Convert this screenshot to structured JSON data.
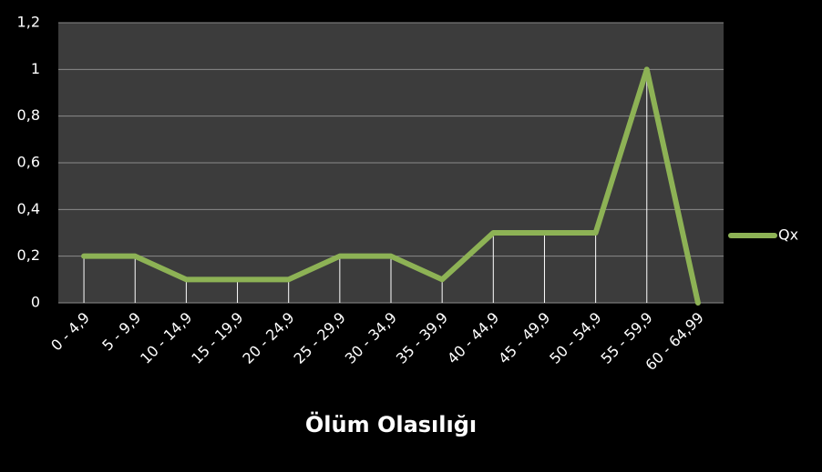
{
  "chart_data": {
    "type": "line",
    "x_label": "Ölüm Olasılığı",
    "categories": [
      "0 - 4,9",
      "5 - 9,9",
      "10 - 14,9",
      "15 - 19,9",
      "20 - 24,9",
      "25 - 29,9",
      "30 - 34,9",
      "35 - 39,9",
      "40 - 44,9",
      "45 - 49,9",
      "50 - 54,9",
      "55 - 59,9",
      "60 - 64,99"
    ],
    "series": [
      {
        "name": "Qx",
        "color": "#8db255",
        "values": [
          0.2,
          0.2,
          0.1,
          0.1,
          0.1,
          0.2,
          0.2,
          0.1,
          0.3,
          0.3,
          0.3,
          1,
          0
        ]
      }
    ],
    "ylim": [
      0,
      1.2
    ],
    "yticks": [
      0,
      {
        "value": 0.2,
        "label": "0,2"
      },
      {
        "value": 0.4,
        "label": "0,4"
      },
      {
        "value": 0.6,
        "label": "0,6"
      },
      {
        "value": 0.8,
        "label": "0,8"
      },
      1,
      {
        "value": 1.2,
        "label": "1,2"
      }
    ],
    "grid": true,
    "drop_lines": true,
    "legend": "right"
  }
}
